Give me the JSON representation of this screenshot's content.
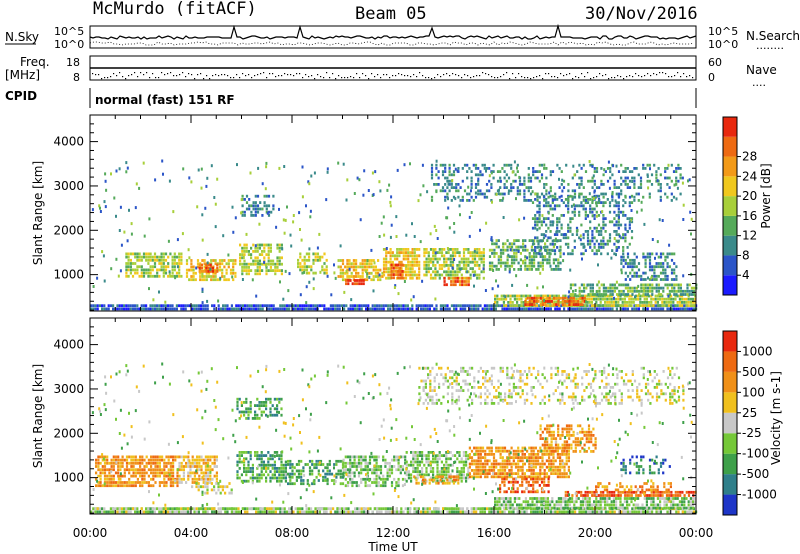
{
  "header": {
    "station": "McMurdo (fitACF)",
    "beam": "Beam 05",
    "date": "30/Nov/2016"
  },
  "strips": {
    "nsky_label": "N.Sky",
    "nsearch_label": "N.Search",
    "nsearch_key": "........",
    "freq_label_top": "Freq.",
    "freq_label_unit": "[MHz]",
    "nave_label": "Nave",
    "nave_key": "....",
    "cpid_label": "CPID",
    "cpid_text": "normal (fast) 151 RF",
    "noise_ticks_left": [
      "10^5",
      "10^0"
    ],
    "noise_ticks_right": [
      "10^5",
      "10^0"
    ],
    "freq_ticks": [
      "18",
      "8"
    ],
    "nave_ticks": [
      "60",
      "0"
    ]
  },
  "chart_data": [
    {
      "type": "heatmap",
      "panel": "power",
      "ylabel": "Slant Range [km]",
      "xlabel": "",
      "x_ticks": [
        "00:00",
        "04:00",
        "08:00",
        "12:00",
        "16:00",
        "20:00",
        "00:00"
      ],
      "xlim_hours": [
        0,
        24
      ],
      "ylim": [
        180,
        4600
      ],
      "y_ticks": [
        1000,
        2000,
        3000,
        4000
      ],
      "colorbar": {
        "label": "Power [dB]",
        "ticks": [
          4,
          8,
          12,
          16,
          20,
          24,
          28
        ],
        "colors": [
          "#1b1bff",
          "#2b55c8",
          "#3a8a8a",
          "#55aa5a",
          "#a8cf3a",
          "#f0c81e",
          "#f39a18",
          "#ee6a12",
          "#e8280e"
        ]
      },
      "bands": [
        {
          "t0": 0.0,
          "t1": 24.0,
          "r0": 200,
          "r1": 330,
          "level": 1,
          "density": 0.85
        },
        {
          "t0": 1.4,
          "t1": 3.6,
          "r0": 950,
          "r1": 1500,
          "level": 4,
          "density": 0.7
        },
        {
          "t0": 3.8,
          "t1": 5.8,
          "r0": 900,
          "r1": 1350,
          "level": 5,
          "density": 0.7
        },
        {
          "t0": 4.3,
          "t1": 5.0,
          "r0": 1100,
          "r1": 1250,
          "level": 7,
          "density": 0.8
        },
        {
          "t0": 6.0,
          "t1": 7.3,
          "r0": 2300,
          "r1": 2800,
          "level": 2,
          "density": 0.55
        },
        {
          "t0": 5.9,
          "t1": 7.6,
          "r0": 1000,
          "r1": 1700,
          "level": 4,
          "density": 0.6
        },
        {
          "t0": 8.2,
          "t1": 9.4,
          "r0": 1000,
          "r1": 1500,
          "level": 4,
          "density": 0.55
        },
        {
          "t0": 9.8,
          "t1": 11.6,
          "r0": 850,
          "r1": 1350,
          "level": 5,
          "density": 0.75
        },
        {
          "t0": 10.1,
          "t1": 10.8,
          "r0": 800,
          "r1": 900,
          "level": 8,
          "density": 0.9
        },
        {
          "t0": 11.6,
          "t1": 13.0,
          "r0": 900,
          "r1": 1600,
          "level": 5,
          "density": 0.75
        },
        {
          "t0": 11.9,
          "t1": 12.4,
          "r0": 950,
          "r1": 1250,
          "level": 7,
          "density": 0.85
        },
        {
          "t0": 13.2,
          "t1": 15.6,
          "r0": 900,
          "r1": 1600,
          "level": 4,
          "density": 0.7
        },
        {
          "t0": 14.0,
          "t1": 15.0,
          "r0": 750,
          "r1": 950,
          "level": 7,
          "density": 0.75
        },
        {
          "t0": 15.8,
          "t1": 18.6,
          "r0": 1100,
          "r1": 1800,
          "level": 3,
          "density": 0.55
        },
        {
          "t0": 16.0,
          "t1": 24.0,
          "r0": 330,
          "r1": 550,
          "level": 4,
          "density": 0.85
        },
        {
          "t0": 17.2,
          "t1": 19.6,
          "r0": 300,
          "r1": 500,
          "level": 7,
          "density": 0.8
        },
        {
          "t0": 19.0,
          "t1": 24.0,
          "r0": 550,
          "r1": 800,
          "level": 3,
          "density": 0.7
        },
        {
          "t0": 17.5,
          "t1": 21.5,
          "r0": 1500,
          "r1": 2800,
          "level": 2,
          "density": 0.35
        },
        {
          "t0": 13.5,
          "t1": 23.5,
          "r0": 2700,
          "r1": 3500,
          "level": 2,
          "density": 0.3
        },
        {
          "t0": 21.0,
          "t1": 23.2,
          "r0": 900,
          "r1": 1500,
          "level": 2,
          "density": 0.45
        }
      ]
    },
    {
      "type": "heatmap",
      "panel": "velocity",
      "ylabel": "Slant Range [km]",
      "xlabel": "Time UT",
      "x_ticks": [
        "00:00",
        "04:00",
        "08:00",
        "12:00",
        "16:00",
        "20:00",
        "00:00"
      ],
      "xlim_hours": [
        0,
        24
      ],
      "ylim": [
        180,
        4600
      ],
      "y_ticks": [
        1000,
        2000,
        3000,
        4000
      ],
      "colorbar": {
        "label": "Velocity [m s-1]",
        "ticks": [
          1000,
          500,
          100,
          25,
          -25,
          -100,
          -500,
          -1000
        ],
        "colors": [
          "#1e36c8",
          "#2f7f8a",
          "#3ea04a",
          "#75c838",
          "#c8c8c8",
          "#f0c01e",
          "#f09018",
          "#ee6a12",
          "#e8280e"
        ]
      },
      "bands": [
        {
          "t0": 0.0,
          "t1": 24.0,
          "r0": 200,
          "r1": 330,
          "level": 3,
          "density": 0.75
        },
        {
          "t0": 0.0,
          "t1": 24.0,
          "r0": 200,
          "r1": 330,
          "level": 4,
          "density": 0.35
        },
        {
          "t0": 0.2,
          "t1": 3.5,
          "r0": 850,
          "r1": 1500,
          "level": 6,
          "density": 0.75
        },
        {
          "t0": 3.5,
          "t1": 5.0,
          "r0": 900,
          "r1": 1500,
          "level": 5,
          "density": 0.7
        },
        {
          "t0": 4.0,
          "t1": 5.6,
          "r0": 650,
          "r1": 900,
          "level": 4,
          "density": 0.45
        },
        {
          "t0": 5.8,
          "t1": 7.6,
          "r0": 2300,
          "r1": 2800,
          "level": 2,
          "density": 0.55
        },
        {
          "t0": 5.8,
          "t1": 7.8,
          "r0": 900,
          "r1": 1600,
          "level": 2,
          "density": 0.6
        },
        {
          "t0": 7.8,
          "t1": 10.0,
          "r0": 850,
          "r1": 1400,
          "level": 2,
          "density": 0.55
        },
        {
          "t0": 10.0,
          "t1": 12.5,
          "r0": 850,
          "r1": 1500,
          "level": 3,
          "density": 0.65
        },
        {
          "t0": 12.5,
          "t1": 15.0,
          "r0": 900,
          "r1": 1600,
          "level": 3,
          "density": 0.6
        },
        {
          "t0": 12.8,
          "t1": 14.6,
          "r0": 850,
          "r1": 1050,
          "level": 6,
          "density": 0.6
        },
        {
          "t0": 15.0,
          "t1": 19.0,
          "r0": 1000,
          "r1": 1700,
          "level": 6,
          "density": 0.75
        },
        {
          "t0": 16.2,
          "t1": 18.2,
          "r0": 700,
          "r1": 1000,
          "level": 7,
          "density": 0.65
        },
        {
          "t0": 17.8,
          "t1": 20.0,
          "r0": 1600,
          "r1": 2200,
          "level": 6,
          "density": 0.5
        },
        {
          "t0": 16.0,
          "t1": 24.0,
          "r0": 330,
          "r1": 560,
          "level": 3,
          "density": 0.75
        },
        {
          "t0": 18.8,
          "t1": 24.0,
          "r0": 560,
          "r1": 700,
          "level": 7,
          "density": 0.75
        },
        {
          "t0": 20.0,
          "t1": 23.0,
          "r0": 700,
          "r1": 900,
          "level": 6,
          "density": 0.45
        },
        {
          "t0": 13.0,
          "t1": 23.5,
          "r0": 2700,
          "r1": 3500,
          "level": 4,
          "density": 0.3
        },
        {
          "t0": 21.0,
          "t1": 23.0,
          "r0": 1100,
          "r1": 1500,
          "level": 1,
          "density": 0.25
        }
      ]
    }
  ]
}
